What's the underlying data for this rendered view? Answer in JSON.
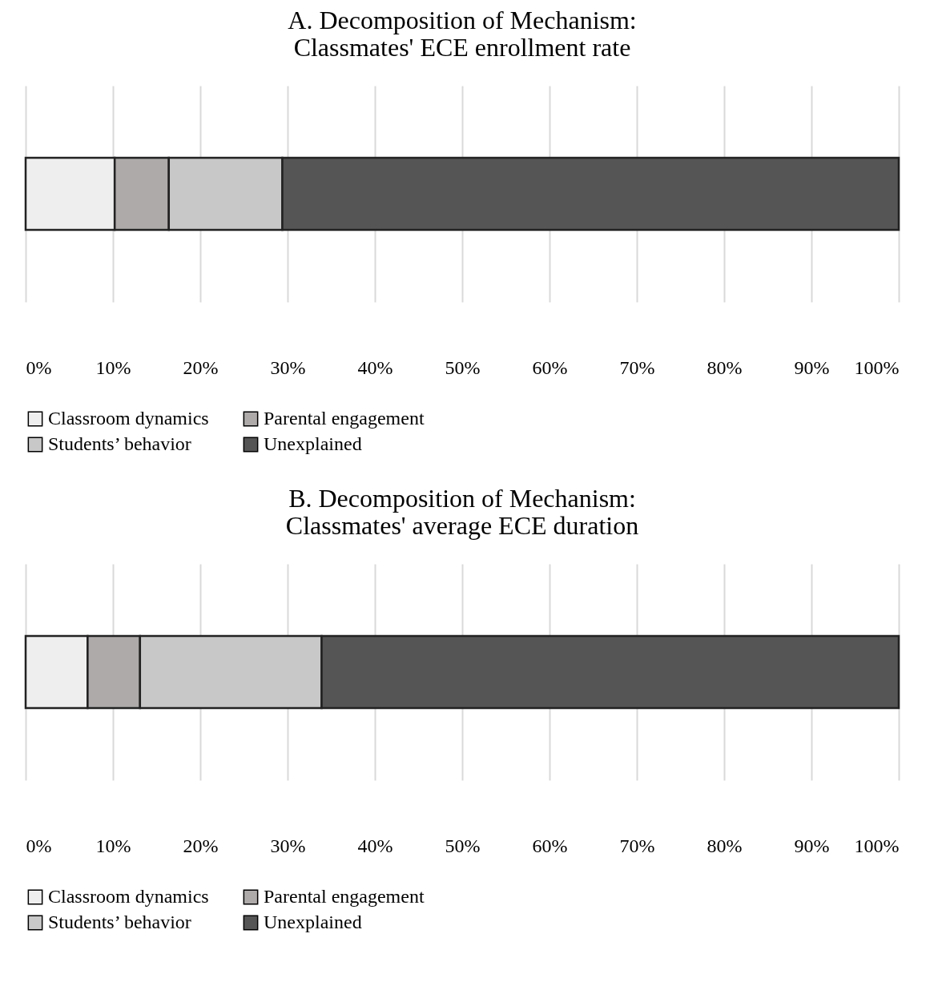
{
  "chart_data": [
    {
      "type": "bar",
      "title": "A. Decomposition of Mechanism:\nClassmates' ECE enrollment rate",
      "orientation": "horizontal",
      "stacked": true,
      "categories": [
        null
      ],
      "series": [
        {
          "name": "Classroom dynamics",
          "color": "#eeeeee",
          "values": [
            10.2
          ]
        },
        {
          "name": "Parental engagement",
          "color": "#aeaaaa",
          "values": [
            6.2
          ]
        },
        {
          "name": "Students’ behavior",
          "color": "#c8c8c8",
          "values": [
            13.0
          ]
        },
        {
          "name": "Unexplained",
          "color": "#555555",
          "values": [
            70.6
          ]
        }
      ],
      "xlim": [
        0,
        100
      ],
      "xticks": [
        {
          "value": 0,
          "label": "0%"
        },
        {
          "value": 10,
          "label": "10%"
        },
        {
          "value": 20,
          "label": "20%"
        },
        {
          "value": 30,
          "label": "30%"
        },
        {
          "value": 40,
          "label": "40%"
        },
        {
          "value": 50,
          "label": "50%"
        },
        {
          "value": 60,
          "label": "60%"
        },
        {
          "value": 70,
          "label": "70%"
        },
        {
          "value": 80,
          "label": "80%"
        },
        {
          "value": 90,
          "label": "90%"
        },
        {
          "value": 100,
          "label": "100%"
        }
      ],
      "grid": "x",
      "legend": "bottom"
    },
    {
      "type": "bar",
      "title": "B. Decomposition of Mechanism:\nClassmates' average ECE duration",
      "orientation": "horizontal",
      "stacked": true,
      "categories": [
        null
      ],
      "series": [
        {
          "name": "Classroom dynamics",
          "color": "#eeeeee",
          "values": [
            7.1
          ]
        },
        {
          "name": "Parental engagement",
          "color": "#aeaaaa",
          "values": [
            6.0
          ]
        },
        {
          "name": "Students’ behavior",
          "color": "#c8c8c8",
          "values": [
            20.8
          ]
        },
        {
          "name": "Unexplained",
          "color": "#555555",
          "values": [
            66.1
          ]
        }
      ],
      "xlim": [
        0,
        100
      ],
      "xticks": [
        {
          "value": 0,
          "label": "0%"
        },
        {
          "value": 10,
          "label": "10%"
        },
        {
          "value": 20,
          "label": "20%"
        },
        {
          "value": 30,
          "label": "30%"
        },
        {
          "value": 40,
          "label": "40%"
        },
        {
          "value": 50,
          "label": "50%"
        },
        {
          "value": 60,
          "label": "60%"
        },
        {
          "value": 70,
          "label": "70%"
        },
        {
          "value": 80,
          "label": "80%"
        },
        {
          "value": 90,
          "label": "90%"
        },
        {
          "value": 100,
          "label": "100%"
        }
      ],
      "grid": "x",
      "legend": "bottom"
    }
  ]
}
